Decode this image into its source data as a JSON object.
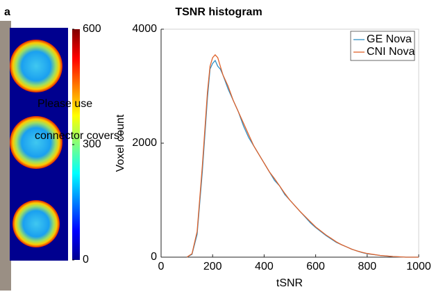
{
  "chart_data": [
    {
      "type": "image",
      "label": "a",
      "colorbar": {
        "clim": [
          0,
          600
        ],
        "ticks": [
          0,
          300,
          600
        ]
      }
    },
    {
      "type": "line",
      "title": "TSNR histogram",
      "xlabel": "tSNR",
      "ylabel": "Voxel count",
      "x": [
        100,
        120,
        140,
        160,
        180,
        190,
        200,
        210,
        220,
        230,
        240,
        260,
        280,
        300,
        320,
        340,
        360,
        380,
        400,
        420,
        440,
        460,
        480,
        500,
        520,
        540,
        560,
        580,
        600,
        620,
        640,
        660,
        680,
        700,
        720,
        740,
        760,
        780,
        800,
        850,
        900,
        950,
        1000
      ],
      "series": [
        {
          "name": "GE Nova",
          "color": "#2f8fc4",
          "values": [
            0,
            50,
            400,
            1500,
            2800,
            3300,
            3400,
            3450,
            3350,
            3300,
            3200,
            2950,
            2750,
            2550,
            2300,
            2100,
            1950,
            1800,
            1650,
            1500,
            1350,
            1250,
            1100,
            1000,
            900,
            800,
            700,
            600,
            520,
            450,
            380,
            320,
            260,
            220,
            180,
            140,
            110,
            80,
            60,
            30,
            10,
            0,
            0
          ]
        },
        {
          "name": "CNI Nova",
          "color": "#e0622a",
          "values": [
            0,
            60,
            450,
            1600,
            2900,
            3350,
            3500,
            3550,
            3500,
            3350,
            3200,
            3000,
            2750,
            2550,
            2350,
            2150,
            1950,
            1800,
            1650,
            1500,
            1380,
            1250,
            1120,
            1000,
            900,
            800,
            710,
            620,
            530,
            460,
            390,
            330,
            270,
            220,
            180,
            140,
            110,
            85,
            65,
            30,
            12,
            0,
            0
          ]
        }
      ],
      "xlim": [
        0,
        1000
      ],
      "xticks": [
        0,
        200,
        400,
        600,
        800,
        1000
      ],
      "ylim": [
        0,
        4000
      ],
      "yticks": [
        0,
        2000,
        4000
      ],
      "legend": "upper right"
    }
  ],
  "overlay": [
    "Please use",
    "connector covers!"
  ]
}
